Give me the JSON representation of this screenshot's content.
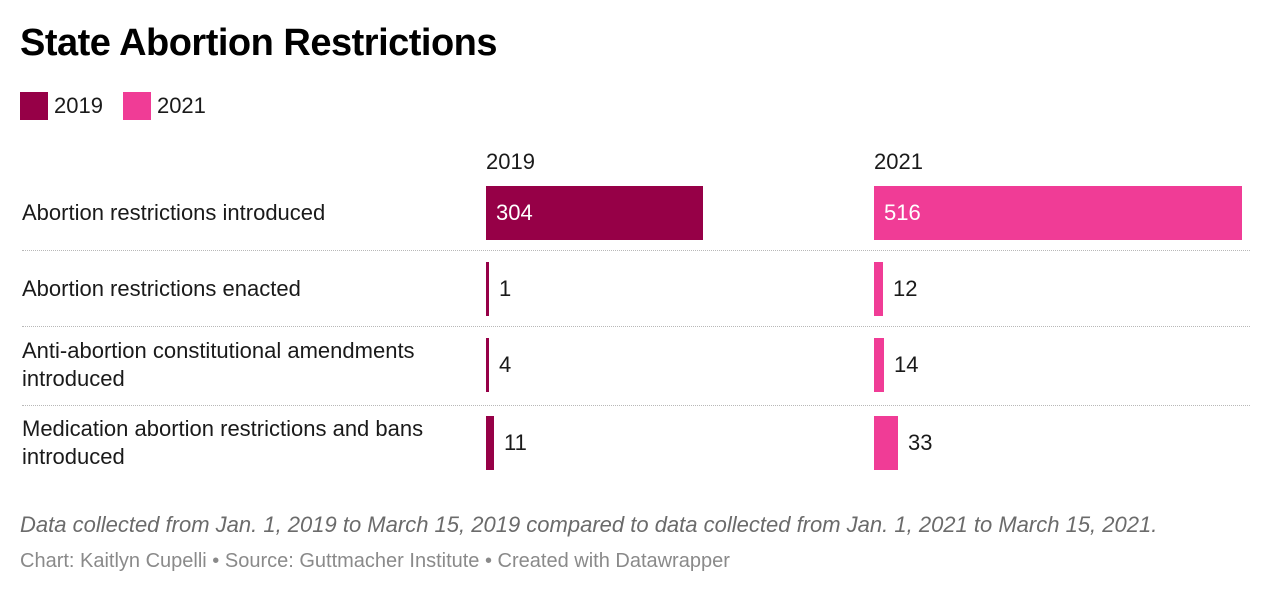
{
  "chart_data": {
    "type": "bar",
    "title": "State Abortion Restrictions",
    "categories": [
      "Abortion restrictions introduced",
      "Abortion restrictions enacted",
      "Anti-abortion constitutional amendments introduced",
      "Medication abortion restrictions and bans introduced"
    ],
    "series": [
      {
        "name": "2019",
        "color": "#960047",
        "values": [
          304,
          1,
          4,
          11
        ]
      },
      {
        "name": "2021",
        "color": "#f03c96",
        "values": [
          516,
          12,
          14,
          33
        ]
      }
    ],
    "legend": "top-left",
    "grid": false,
    "xlim": [
      0,
      516
    ]
  },
  "legend": [
    {
      "label": "2019",
      "color": "#960047"
    },
    {
      "label": "2021",
      "color": "#f03c96"
    }
  ],
  "columns": [
    "2019",
    "2021"
  ],
  "notes": "Data collected from Jan. 1, 2019 to March 15, 2019 compared to data collected from Jan. 1, 2021 to March 15, 2021.",
  "footer": "Chart: Kaitlyn Cupelli • Source: Guttmacher Institute • Created with Datawrapper"
}
